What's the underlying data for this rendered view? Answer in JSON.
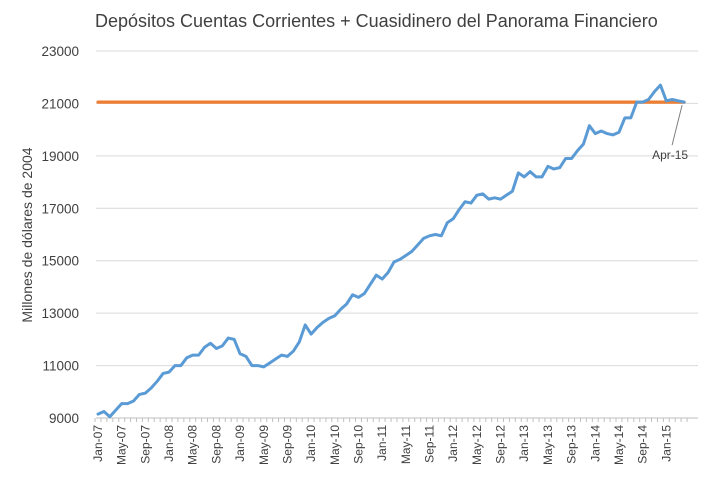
{
  "chart_data": {
    "type": "line",
    "title": "Depósitos Cuentas Corrientes + Cuasidinero del Panorama Financiero",
    "ylabel": "Millones de dólares de 2004",
    "xlabel": "",
    "ylim": [
      9000,
      23000
    ],
    "yticks": [
      9000,
      11000,
      13000,
      15000,
      17000,
      19000,
      21000,
      23000
    ],
    "ytick_labels": [
      "9000",
      "11000",
      "13000",
      "15000",
      "17000",
      "19000",
      "21000",
      "23000"
    ],
    "grid": "horizontal",
    "legend": "none",
    "x_tick_labels": [
      "Jan-07",
      "May-07",
      "Sep-07",
      "Jan-08",
      "May-08",
      "Sep-08",
      "Jan-09",
      "May-09",
      "Sep-09",
      "Jan-10",
      "May-10",
      "Sep-10",
      "Jan-11",
      "May-11",
      "Sep-11",
      "Jan-12",
      "May-12",
      "Sep-12",
      "Jan-13",
      "May-13",
      "Sep-13",
      "Jan-14",
      "May-14",
      "Sep-14",
      "Jan-15"
    ],
    "x": [
      "Jan-07",
      "Feb-07",
      "Mar-07",
      "Apr-07",
      "May-07",
      "Jun-07",
      "Jul-07",
      "Aug-07",
      "Sep-07",
      "Oct-07",
      "Nov-07",
      "Dec-07",
      "Jan-08",
      "Feb-08",
      "Mar-08",
      "Apr-08",
      "May-08",
      "Jun-08",
      "Jul-08",
      "Aug-08",
      "Sep-08",
      "Oct-08",
      "Nov-08",
      "Dec-08",
      "Jan-09",
      "Feb-09",
      "Mar-09",
      "Apr-09",
      "May-09",
      "Jun-09",
      "Jul-09",
      "Aug-09",
      "Sep-09",
      "Oct-09",
      "Nov-09",
      "Dec-09",
      "Jan-10",
      "Feb-10",
      "Mar-10",
      "Apr-10",
      "May-10",
      "Jun-10",
      "Jul-10",
      "Aug-10",
      "Sep-10",
      "Oct-10",
      "Nov-10",
      "Dec-10",
      "Jan-11",
      "Feb-11",
      "Mar-11",
      "Apr-11",
      "May-11",
      "Jun-11",
      "Jul-11",
      "Aug-11",
      "Sep-11",
      "Oct-11",
      "Nov-11",
      "Dec-11",
      "Jan-12",
      "Feb-12",
      "Mar-12",
      "Apr-12",
      "May-12",
      "Jun-12",
      "Jul-12",
      "Aug-12",
      "Sep-12",
      "Oct-12",
      "Nov-12",
      "Dec-12",
      "Jan-13",
      "Feb-13",
      "Mar-13",
      "Apr-13",
      "May-13",
      "Jun-13",
      "Jul-13",
      "Aug-13",
      "Sep-13",
      "Oct-13",
      "Nov-13",
      "Dec-13",
      "Jan-14",
      "Feb-14",
      "Mar-14",
      "Apr-14",
      "May-14",
      "Jun-14",
      "Jul-14",
      "Aug-14",
      "Sep-14",
      "Oct-14",
      "Nov-14",
      "Dec-14",
      "Jan-15",
      "Feb-15",
      "Mar-15",
      "Apr-15"
    ],
    "series": [
      {
        "color": "#5b9bd5",
        "values": [
          9150,
          9250,
          9050,
          9300,
          9550,
          9550,
          9650,
          9900,
          9950,
          10150,
          10400,
          10700,
          10750,
          11000,
          11000,
          11300,
          11400,
          11400,
          11700,
          11850,
          11650,
          11750,
          12050,
          12000,
          11450,
          11350,
          11000,
          11000,
          10950,
          11100,
          11250,
          11400,
          11350,
          11550,
          11900,
          12550,
          12200,
          12450,
          12650,
          12800,
          12900,
          13150,
          13350,
          13700,
          13600,
          13750,
          14100,
          14450,
          14300,
          14550,
          14950,
          15050,
          15200,
          15350,
          15600,
          15850,
          15950,
          16000,
          15950,
          16450,
          16600,
          16950,
          17250,
          17200,
          17500,
          17550,
          17350,
          17400,
          17350,
          17500,
          17650,
          18350,
          18200,
          18400,
          18200,
          18200,
          18600,
          18500,
          18550,
          18900,
          18900,
          19200,
          19450,
          20150,
          19850,
          19950,
          19850,
          19800,
          19900,
          20450,
          20450,
          21050,
          21050,
          21150,
          21450,
          21700,
          21100,
          21150,
          21100,
          21050
        ]
      },
      {
        "color": "#ed7d31",
        "values": [
          21050,
          21050,
          21050,
          21050,
          21050,
          21050,
          21050,
          21050,
          21050,
          21050,
          21050,
          21050,
          21050,
          21050,
          21050,
          21050,
          21050,
          21050,
          21050,
          21050,
          21050,
          21050,
          21050,
          21050,
          21050,
          21050,
          21050,
          21050,
          21050,
          21050,
          21050,
          21050,
          21050,
          21050,
          21050,
          21050,
          21050,
          21050,
          21050,
          21050,
          21050,
          21050,
          21050,
          21050,
          21050,
          21050,
          21050,
          21050,
          21050,
          21050,
          21050,
          21050,
          21050,
          21050,
          21050,
          21050,
          21050,
          21050,
          21050,
          21050,
          21050,
          21050,
          21050,
          21050,
          21050,
          21050,
          21050,
          21050,
          21050,
          21050,
          21050,
          21050,
          21050,
          21050,
          21050,
          21050,
          21050,
          21050,
          21050,
          21050,
          21050,
          21050,
          21050,
          21050,
          21050,
          21050,
          21050,
          21050,
          21050,
          21050,
          21050,
          21050,
          21050,
          21050,
          21050,
          21050,
          21050,
          21050,
          21050,
          21050
        ]
      }
    ],
    "annotations": [
      {
        "text": "Apr-15",
        "x": "Apr-15",
        "y": 21050
      }
    ]
  },
  "colors": {
    "gridline": "#d9d9d9",
    "axis": "#bfbfbf",
    "text": "#404040",
    "annotation_leader": "#7f7f7f"
  }
}
